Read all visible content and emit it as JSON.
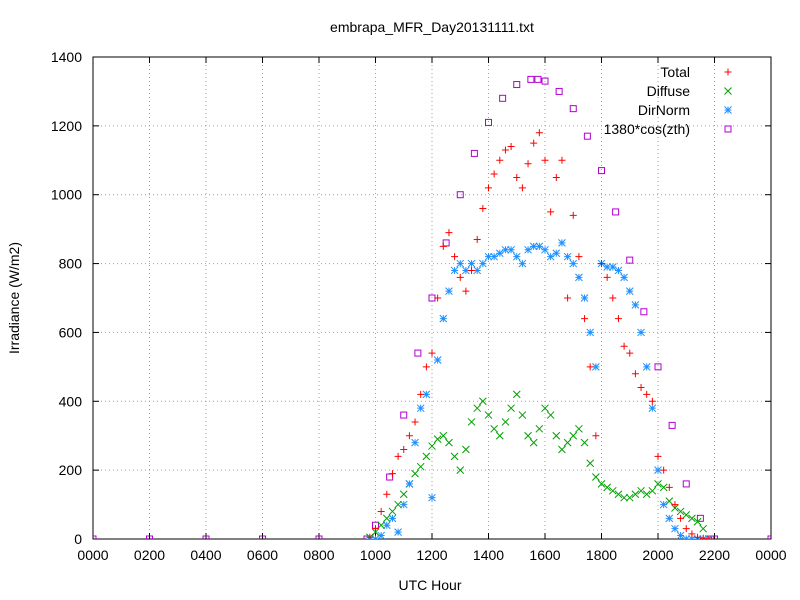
{
  "chart_data": {
    "type": "scatter",
    "title": "embrapa_MFR_Day20131111.txt",
    "xlabel": "UTC Hour",
    "ylabel": "Irradiance (W/m2)",
    "xlim": [
      0,
      24
    ],
    "ylim": [
      0,
      1400
    ],
    "grid": true,
    "legend_position": "top-right",
    "x_tick_labels": [
      "0000",
      "0200",
      "0400",
      "0600",
      "0800",
      "1000",
      "1200",
      "1400",
      "1600",
      "1800",
      "2000",
      "2200",
      "0000"
    ],
    "y_ticks": [
      0,
      200,
      400,
      600,
      800,
      1000,
      1200,
      1400
    ],
    "series": [
      {
        "name": "Total",
        "marker": "plus",
        "color": "#ff0000",
        "x": [
          9.8,
          10.0,
          10.2,
          10.4,
          10.6,
          10.8,
          11.0,
          11.2,
          11.4,
          11.6,
          11.8,
          12.0,
          12.2,
          12.4,
          12.6,
          12.8,
          13.0,
          13.2,
          13.4,
          13.6,
          13.8,
          14.0,
          14.2,
          14.4,
          14.6,
          14.8,
          15.0,
          15.2,
          15.4,
          15.6,
          15.8,
          16.0,
          16.2,
          16.4,
          16.6,
          16.8,
          17.0,
          17.2,
          17.4,
          17.6,
          17.8,
          18.0,
          18.2,
          18.4,
          18.6,
          18.8,
          19.0,
          19.2,
          19.4,
          19.6,
          19.8,
          20.0,
          20.2,
          20.4,
          20.6,
          20.8,
          21.0,
          21.2,
          21.4,
          21.6,
          21.8
        ],
        "y": [
          5,
          30,
          80,
          130,
          190,
          240,
          260,
          300,
          340,
          420,
          500,
          540,
          700,
          850,
          890,
          820,
          760,
          720,
          780,
          870,
          960,
          1020,
          1060,
          1100,
          1130,
          1140,
          1050,
          1020,
          1090,
          1150,
          1180,
          1100,
          950,
          1050,
          1100,
          700,
          940,
          820,
          640,
          500,
          300,
          800,
          760,
          700,
          640,
          560,
          540,
          480,
          440,
          420,
          400,
          240,
          200,
          150,
          100,
          60,
          30,
          15,
          5,
          2,
          0
        ]
      },
      {
        "name": "Diffuse",
        "marker": "x",
        "color": "#00a000",
        "x": [
          9.8,
          10.0,
          10.2,
          10.4,
          10.6,
          10.8,
          11.0,
          11.2,
          11.4,
          11.6,
          11.8,
          12.0,
          12.2,
          12.4,
          12.6,
          12.8,
          13.0,
          13.2,
          13.4,
          13.6,
          13.8,
          14.0,
          14.2,
          14.4,
          14.6,
          14.8,
          15.0,
          15.2,
          15.4,
          15.6,
          15.8,
          16.0,
          16.2,
          16.4,
          16.6,
          16.8,
          17.0,
          17.2,
          17.4,
          17.6,
          17.8,
          18.0,
          18.2,
          18.4,
          18.6,
          18.8,
          19.0,
          19.2,
          19.4,
          19.6,
          19.8,
          20.0,
          20.2,
          20.4,
          20.6,
          20.8,
          21.0,
          21.2,
          21.4,
          21.6,
          21.8
        ],
        "y": [
          5,
          20,
          40,
          60,
          80,
          100,
          130,
          160,
          190,
          210,
          240,
          270,
          290,
          300,
          280,
          240,
          200,
          260,
          340,
          380,
          400,
          360,
          320,
          300,
          340,
          380,
          420,
          360,
          300,
          280,
          320,
          380,
          360,
          300,
          260,
          280,
          300,
          320,
          280,
          220,
          180,
          160,
          150,
          140,
          130,
          120,
          120,
          130,
          140,
          130,
          140,
          160,
          150,
          110,
          90,
          80,
          70,
          60,
          50,
          30,
          0
        ]
      },
      {
        "name": "DirNorm",
        "marker": "star",
        "color": "#1e90ff",
        "x": [
          9.8,
          10.0,
          10.2,
          10.4,
          10.6,
          10.8,
          11.0,
          11.2,
          11.4,
          11.6,
          11.8,
          12.0,
          12.2,
          12.4,
          12.6,
          12.8,
          13.0,
          13.2,
          13.4,
          13.6,
          13.8,
          14.0,
          14.2,
          14.4,
          14.6,
          14.8,
          15.0,
          15.2,
          15.4,
          15.6,
          15.8,
          16.0,
          16.2,
          16.4,
          16.6,
          16.8,
          17.0,
          17.2,
          17.4,
          17.6,
          17.8,
          18.0,
          18.2,
          18.4,
          18.6,
          18.8,
          19.0,
          19.2,
          19.4,
          19.6,
          19.8,
          20.0,
          20.2,
          20.4,
          20.6,
          20.8,
          21.0,
          21.2,
          21.4,
          21.6,
          21.8
        ],
        "y": [
          0,
          0,
          10,
          40,
          60,
          20,
          100,
          160,
          280,
          380,
          420,
          120,
          520,
          640,
          720,
          780,
          800,
          780,
          800,
          780,
          800,
          820,
          820,
          830,
          840,
          840,
          820,
          800,
          840,
          850,
          850,
          840,
          820,
          830,
          860,
          820,
          800,
          760,
          700,
          600,
          500,
          800,
          790,
          790,
          780,
          760,
          720,
          680,
          600,
          500,
          380,
          200,
          100,
          60,
          30,
          10,
          0,
          0,
          0,
          0,
          0
        ]
      },
      {
        "name": "1380*cos(zth)",
        "marker": "square",
        "color": "#b000d0",
        "x": [
          0,
          2,
          4,
          6,
          8,
          9.7,
          10.0,
          10.5,
          11.0,
          11.5,
          12.0,
          12.5,
          13.0,
          13.5,
          14.0,
          14.5,
          15.0,
          15.5,
          15.75,
          16.0,
          16.5,
          17.0,
          17.5,
          18.0,
          18.5,
          19.0,
          19.5,
          20.0,
          20.5,
          21.0,
          21.5,
          21.85,
          22,
          24
        ],
        "y": [
          0,
          0,
          0,
          0,
          0,
          0,
          40,
          180,
          360,
          540,
          700,
          860,
          1000,
          1120,
          1210,
          1280,
          1320,
          1335,
          1335,
          1330,
          1300,
          1250,
          1170,
          1070,
          950,
          810,
          660,
          500,
          330,
          160,
          60,
          0,
          0,
          0
        ]
      }
    ]
  }
}
